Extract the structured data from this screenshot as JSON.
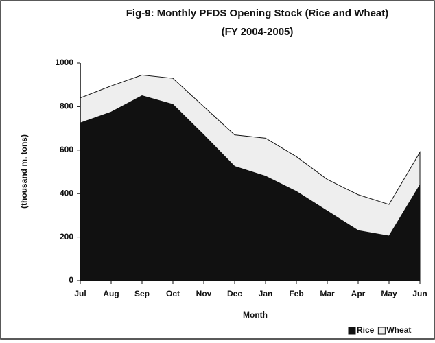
{
  "chart_data": {
    "type": "stacked-area",
    "title": "Fig-9: Monthly PFDS Opening Stock (Rice and Wheat)",
    "subtitle": "(FY 2004-2005)",
    "x_label": "Month",
    "y_label": "(thousand m. tons)",
    "categories": [
      "Jul",
      "Aug",
      "Sep",
      "Oct",
      "Nov",
      "Dec",
      "Jan",
      "Feb",
      "Mar",
      "Apr",
      "May",
      "Jun"
    ],
    "series": [
      {
        "name": "Rice",
        "color": "#111111",
        "values": [
          725,
          775,
          850,
          810,
          670,
          525,
          480,
          410,
          320,
          230,
          205,
          440
        ]
      },
      {
        "name": "Wheat",
        "color": "#eeeeee",
        "values": [
          115,
          120,
          95,
          120,
          130,
          145,
          175,
          160,
          145,
          165,
          145,
          150
        ]
      }
    ],
    "ylim": [
      0,
      1000
    ],
    "yticks": [
      0,
      200,
      400,
      600,
      800,
      1000
    ],
    "legend": "bottom-right"
  }
}
